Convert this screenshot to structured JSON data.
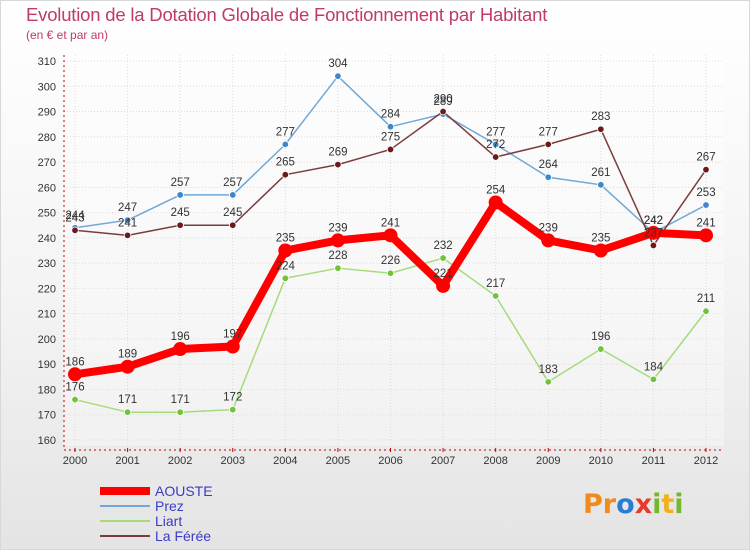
{
  "header": {
    "title": "Evolution de la Dotation Globale de Fonctionnement par Habitant",
    "subtitle": "(en € et par an)"
  },
  "logo": {
    "text": "Proxiti",
    "letters": [
      "P",
      "r",
      "o",
      "x",
      "i",
      "t",
      "i"
    ],
    "colors": [
      "#f08a1c",
      "#f08a1c",
      "#2a7dd4",
      "#e63a2e",
      "#77b72e",
      "#f0b21c",
      "#77b72e"
    ]
  },
  "chart_data": {
    "type": "line",
    "title": "Evolution de la Dotation Globale de Fonctionnement par Habitant",
    "subtitle": "(en € et par an)",
    "xlabel": "",
    "ylabel": "",
    "x": [
      "2000",
      "2001",
      "2002",
      "2003",
      "2004",
      "2005",
      "2006",
      "2007",
      "2008",
      "2009",
      "2010",
      "2011",
      "2012"
    ],
    "ylim": [
      160,
      310
    ],
    "yticks": [
      "160",
      "170",
      "180",
      "190",
      "200",
      "210",
      "220",
      "230",
      "240",
      "250",
      "260",
      "270",
      "280",
      "290",
      "300",
      "310"
    ],
    "grid": true,
    "legend_position": "bottom-left",
    "series": [
      {
        "name": "AOUSTE",
        "color": "#ff0000",
        "values": [
          186,
          189,
          196,
          197,
          235,
          239,
          241,
          221,
          254,
          239,
          235,
          242,
          241
        ],
        "labels": [
          "186",
          "189",
          "196",
          "197",
          "235",
          "239",
          "241",
          "221",
          "254",
          "239",
          "235",
          "242",
          "241"
        ]
      },
      {
        "name": "Prez",
        "color": "#6fa8d6",
        "marker": "#3f87c8",
        "values": [
          244,
          247,
          257,
          257,
          277,
          304,
          284,
          289,
          277,
          264,
          261,
          242,
          253
        ],
        "labels": [
          "244",
          "247",
          "257",
          "257",
          "277",
          "304",
          "284",
          "289",
          "277",
          "264",
          "261",
          "242",
          "253"
        ]
      },
      {
        "name": "Liart",
        "color": "#a6db7c",
        "marker": "#72c23d",
        "values": [
          176,
          171,
          171,
          172,
          224,
          228,
          226,
          232,
          217,
          183,
          196,
          184,
          211
        ],
        "labels": [
          "176",
          "171",
          "171",
          "172",
          "224",
          "228",
          "226",
          "232",
          "217",
          "183",
          "196",
          "184",
          "211"
        ]
      },
      {
        "name": "La Férée",
        "color": "#7a3d3d",
        "marker": "#6a1a1a",
        "values": [
          243,
          241,
          245,
          245,
          265,
          269,
          275,
          290,
          272,
          277,
          283,
          237,
          267
        ],
        "labels": [
          "243",
          "241",
          "245",
          "245",
          "265",
          "269",
          "275",
          "290",
          "272",
          "277",
          "283",
          "237",
          "267"
        ]
      }
    ]
  }
}
